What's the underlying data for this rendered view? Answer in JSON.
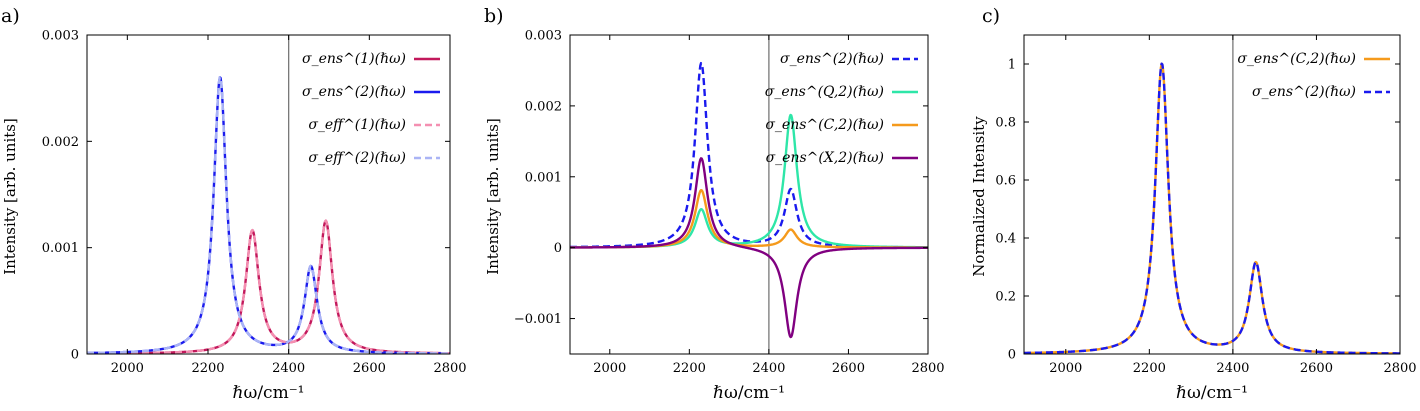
{
  "chart_data": [
    {
      "type": "line",
      "panel_label": "a)",
      "xlabel": "ℏω/cm⁻¹",
      "ylabel": "Intensity [arb. units]",
      "xlim": [
        1900,
        2800
      ],
      "ylim": [
        0,
        0.003
      ],
      "xticks": [
        "2000",
        "2200",
        "2400",
        "2600",
        "2800"
      ],
      "yticks": [
        "0",
        "0.001",
        "0.002",
        "0.003"
      ],
      "vline_x": 2400,
      "legend_position": "top-right",
      "series": [
        {
          "name": "σ_ens^(1)(ℏω)",
          "color": "#c2185b",
          "dash": false,
          "peaks": [
            [
              2310,
              0.00115,
              20
            ],
            [
              2492,
              0.00124,
              20
            ]
          ]
        },
        {
          "name": "σ_ens^(2)(ℏω)",
          "color": "#1a1aee",
          "dash": false,
          "peaks": [
            [
              2230,
              0.0026,
              19
            ],
            [
              2455,
              0.00081,
              19
            ]
          ]
        },
        {
          "name": "σ_eff^(1)(ℏω)",
          "color": "#f48fb1",
          "dash": true,
          "peaks": [
            [
              2310,
              0.00115,
              20
            ],
            [
              2492,
              0.00124,
              20
            ]
          ]
        },
        {
          "name": "σ_eff^(2)(ℏω)",
          "color": "#aab4f5",
          "dash": true,
          "peaks": [
            [
              2230,
              0.0026,
              19
            ],
            [
              2455,
              0.00081,
              19
            ]
          ]
        }
      ]
    },
    {
      "type": "line",
      "panel_label": "b)",
      "xlabel": "ℏω/cm⁻¹",
      "ylabel": "Intensity [arb. units]",
      "xlim": [
        1900,
        2800
      ],
      "ylim": [
        -0.0015,
        0.003
      ],
      "xticks": [
        "2000",
        "2200",
        "2400",
        "2600",
        "2800"
      ],
      "yticks": [
        "−0.001",
        "0",
        "0.001",
        "0.002",
        "0.003"
      ],
      "vline_x": 2400,
      "legend_position": "top-right",
      "series": [
        {
          "name": "σ_ens^(2)(ℏω)",
          "color": "#1a1aee",
          "dash": true,
          "peaks": [
            [
              2230,
              0.0026,
              19
            ],
            [
              2455,
              0.00081,
              19
            ]
          ]
        },
        {
          "name": "σ_ens^(Q,2)(ℏω)",
          "color": "#2ee6a8",
          "dash": false,
          "peaks": [
            [
              2230,
              0.00053,
              19
            ],
            [
              2455,
              0.00187,
              19
            ]
          ]
        },
        {
          "name": "σ_ens^(C,2)(ℏω)",
          "color": "#f59a1c",
          "dash": false,
          "peaks": [
            [
              2230,
              0.00081,
              19
            ],
            [
              2455,
              0.00025,
              19
            ]
          ]
        },
        {
          "name": "σ_ens^(X,2)(ℏω)",
          "color": "#800080",
          "dash": false,
          "peaks": [
            [
              2230,
              0.00127,
              19
            ],
            [
              2455,
              -0.00127,
              19
            ]
          ]
        }
      ]
    },
    {
      "type": "line",
      "panel_label": "c)",
      "xlabel": "ℏω/cm⁻¹",
      "ylabel": "Normalized Intensity",
      "xlim": [
        1900,
        2800
      ],
      "ylim": [
        0,
        1.1
      ],
      "xticks": [
        "2000",
        "2200",
        "2400",
        "2600",
        "2800"
      ],
      "yticks": [
        "0",
        "0.2",
        "0.4",
        "0.6",
        "0.8",
        "1"
      ],
      "vline_x": 2400,
      "legend_position": "top-right",
      "series": [
        {
          "name": "σ_ens^(C,2)(ℏω)",
          "color": "#f59a1c",
          "dash": false,
          "peaks": [
            [
              2230,
              1.0,
              19
            ],
            [
              2455,
              0.31,
              19
            ]
          ]
        },
        {
          "name": "σ_ens^(2)(ℏω)",
          "color": "#1a1aee",
          "dash": true,
          "peaks": [
            [
              2230,
              1.0,
              19
            ],
            [
              2455,
              0.31,
              19
            ]
          ]
        }
      ]
    }
  ]
}
